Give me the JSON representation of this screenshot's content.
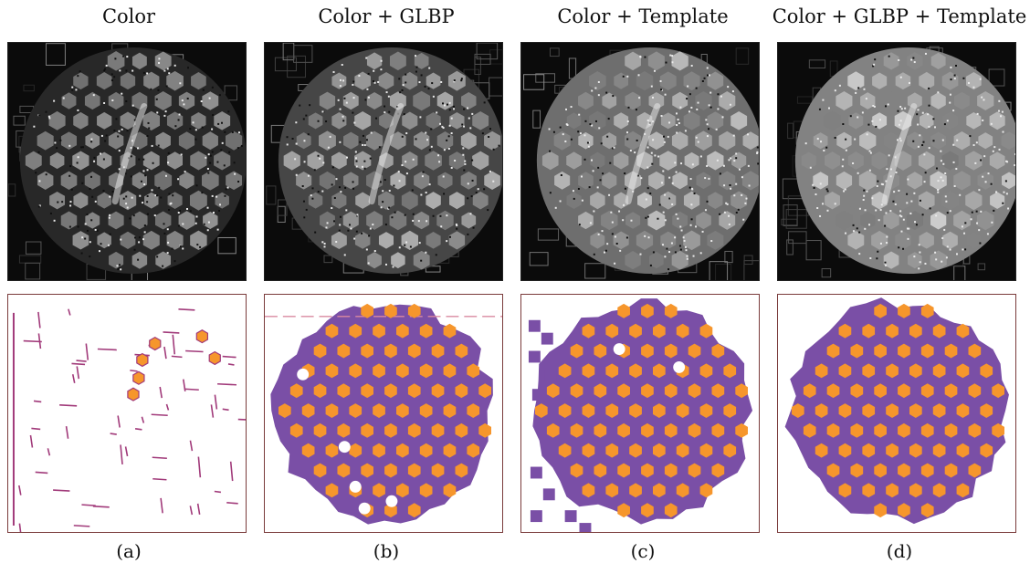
{
  "figure": {
    "columns": [
      {
        "title": "Color",
        "label": "(a)"
      },
      {
        "title": "Color + GLBP",
        "label": "(b)"
      },
      {
        "title": "Color + Template",
        "label": "(c)"
      },
      {
        "title": "Color + GLBP + Template",
        "label": "(d)"
      }
    ],
    "colors": {
      "segmentation_fill": "#7a4fa6",
      "detected_blob": "#f6962c",
      "noise_stroke": "#a13a7a",
      "frame_border": "#7a3b3b"
    }
  }
}
